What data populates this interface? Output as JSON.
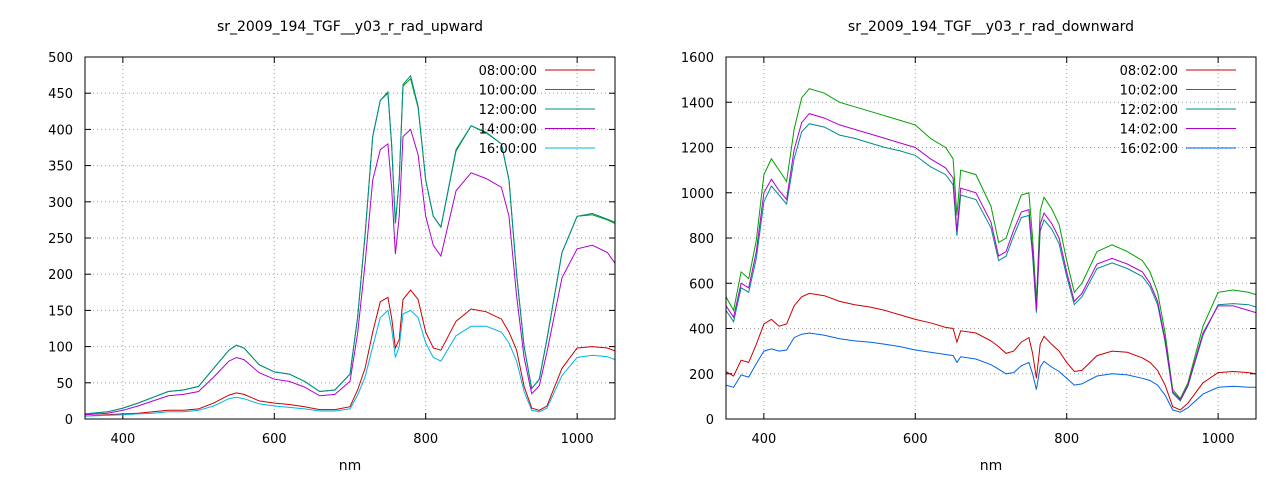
{
  "chart_data": [
    {
      "type": "line",
      "title": "sr_2009_194_TGF__y03_r_rad_upward",
      "xlabel": "nm",
      "ylabel": "",
      "xlim": [
        350,
        1050
      ],
      "ylim": [
        0,
        500
      ],
      "xticks": [
        400,
        600,
        800,
        1000
      ],
      "yticks": [
        0,
        50,
        100,
        150,
        200,
        250,
        300,
        350,
        400,
        450,
        500
      ],
      "grid": true,
      "legend": "top-right",
      "series": [
        {
          "name": "08:00:00",
          "color": "#cc0000",
          "x": [
            350,
            380,
            400,
            420,
            440,
            460,
            480,
            500,
            520,
            540,
            550,
            560,
            580,
            600,
            620,
            640,
            660,
            680,
            700,
            710,
            720,
            730,
            740,
            750,
            755,
            760,
            765,
            770,
            780,
            790,
            800,
            810,
            820,
            840,
            860,
            880,
            900,
            910,
            920,
            930,
            940,
            950,
            960,
            980,
            1000,
            1020,
            1040,
            1050
          ],
          "y": [
            4,
            6,
            7,
            8,
            10,
            12,
            12,
            14,
            22,
            33,
            36,
            34,
            25,
            22,
            20,
            17,
            13,
            13,
            17,
            40,
            70,
            120,
            162,
            168,
            140,
            98,
            110,
            165,
            178,
            165,
            120,
            98,
            95,
            135,
            152,
            148,
            138,
            120,
            95,
            45,
            15,
            12,
            18,
            70,
            98,
            100,
            98,
            94
          ]
        },
        {
          "name": "10:00:00",
          "color": "#00a000",
          "x": [
            350,
            380,
            400,
            420,
            440,
            460,
            480,
            500,
            520,
            540,
            550,
            560,
            580,
            600,
            620,
            640,
            660,
            680,
            700,
            710,
            720,
            730,
            740,
            750,
            755,
            760,
            765,
            770,
            780,
            790,
            800,
            810,
            820,
            840,
            860,
            880,
            900,
            910,
            920,
            930,
            940,
            950,
            960,
            980,
            1000,
            1020,
            1040,
            1050
          ],
          "y": [
            7,
            10,
            15,
            22,
            30,
            38,
            40,
            45,
            70,
            95,
            102,
            98,
            75,
            65,
            62,
            52,
            38,
            40,
            62,
            140,
            255,
            390,
            440,
            450,
            380,
            270,
            330,
            460,
            470,
            430,
            330,
            280,
            265,
            370,
            405,
            395,
            380,
            330,
            200,
            100,
            42,
            55,
            110,
            230,
            280,
            282,
            275,
            270
          ]
        },
        {
          "name": "12:00:00",
          "color": "#008b8b",
          "x": [
            350,
            380,
            400,
            420,
            440,
            460,
            480,
            500,
            520,
            540,
            550,
            560,
            580,
            600,
            620,
            640,
            660,
            680,
            700,
            710,
            720,
            730,
            740,
            750,
            755,
            760,
            765,
            770,
            780,
            790,
            800,
            810,
            820,
            840,
            860,
            880,
            900,
            910,
            920,
            930,
            940,
            950,
            960,
            980,
            1000,
            1020,
            1040,
            1050
          ],
          "y": [
            7,
            10,
            15,
            22,
            30,
            38,
            40,
            45,
            70,
            95,
            102,
            98,
            75,
            65,
            62,
            52,
            38,
            40,
            62,
            140,
            255,
            390,
            440,
            452,
            380,
            270,
            330,
            462,
            474,
            432,
            330,
            280,
            265,
            372,
            405,
            396,
            380,
            330,
            200,
            100,
            42,
            55,
            110,
            230,
            280,
            284,
            276,
            272
          ]
        },
        {
          "name": "14:00:00",
          "color": "#b000d0",
          "x": [
            350,
            380,
            400,
            420,
            440,
            460,
            480,
            500,
            520,
            540,
            550,
            560,
            580,
            600,
            620,
            640,
            660,
            680,
            700,
            710,
            720,
            730,
            740,
            750,
            755,
            760,
            765,
            770,
            780,
            790,
            800,
            810,
            820,
            840,
            860,
            880,
            900,
            910,
            920,
            930,
            940,
            950,
            960,
            980,
            1000,
            1020,
            1040,
            1050
          ],
          "y": [
            6,
            8,
            12,
            18,
            25,
            32,
            34,
            38,
            58,
            80,
            85,
            82,
            64,
            55,
            52,
            44,
            32,
            34,
            52,
            118,
            215,
            330,
            372,
            380,
            320,
            228,
            280,
            390,
            400,
            365,
            280,
            240,
            225,
            315,
            340,
            332,
            320,
            280,
            170,
            85,
            35,
            46,
            92,
            195,
            235,
            240,
            230,
            215
          ]
        },
        {
          "name": "16:00:00",
          "color": "#00b4e6",
          "x": [
            350,
            380,
            400,
            420,
            440,
            460,
            480,
            500,
            520,
            540,
            550,
            560,
            580,
            600,
            620,
            640,
            660,
            680,
            700,
            710,
            720,
            730,
            740,
            750,
            755,
            760,
            765,
            770,
            780,
            790,
            800,
            810,
            820,
            840,
            860,
            880,
            900,
            910,
            920,
            930,
            940,
            950,
            960,
            980,
            1000,
            1020,
            1040,
            1050
          ],
          "y": [
            4,
            5,
            6,
            7,
            8,
            10,
            10,
            12,
            18,
            28,
            30,
            28,
            21,
            18,
            16,
            14,
            11,
            11,
            14,
            33,
            58,
            100,
            140,
            150,
            125,
            85,
            100,
            145,
            150,
            140,
            105,
            85,
            80,
            115,
            128,
            128,
            120,
            105,
            80,
            38,
            12,
            10,
            15,
            60,
            85,
            88,
            86,
            82
          ]
        }
      ]
    },
    {
      "type": "line",
      "title": "sr_2009_194_TGF__y03_r_rad_downward",
      "xlabel": "nm",
      "ylabel": "",
      "xlim": [
        350,
        1050
      ],
      "ylim": [
        0,
        1600
      ],
      "xticks": [
        400,
        600,
        800,
        1000
      ],
      "yticks": [
        0,
        200,
        400,
        600,
        800,
        1000,
        1200,
        1400,
        1600
      ],
      "grid": true,
      "legend": "top-right",
      "series": [
        {
          "name": "08:02:00",
          "color": "#cc0000",
          "x": [
            350,
            360,
            370,
            380,
            390,
            400,
            410,
            420,
            430,
            440,
            450,
            460,
            480,
            500,
            520,
            540,
            560,
            580,
            600,
            620,
            640,
            650,
            655,
            660,
            680,
            700,
            710,
            720,
            730,
            740,
            750,
            755,
            760,
            765,
            770,
            780,
            790,
            800,
            810,
            820,
            840,
            860,
            880,
            900,
            910,
            920,
            930,
            940,
            950,
            960,
            980,
            1000,
            1020,
            1040,
            1050
          ],
          "y": [
            210,
            190,
            260,
            250,
            330,
            420,
            440,
            410,
            420,
            500,
            540,
            555,
            545,
            520,
            505,
            495,
            480,
            460,
            440,
            425,
            405,
            400,
            340,
            390,
            380,
            345,
            320,
            290,
            300,
            340,
            360,
            290,
            180,
            330,
            365,
            330,
            300,
            250,
            210,
            215,
            280,
            300,
            295,
            270,
            250,
            215,
            150,
            55,
            40,
            70,
            160,
            205,
            210,
            205,
            200
          ]
        },
        {
          "name": "10:02:00",
          "color": "#00a000",
          "x": [
            350,
            360,
            370,
            380,
            390,
            400,
            410,
            420,
            430,
            440,
            450,
            460,
            480,
            500,
            520,
            540,
            560,
            580,
            600,
            620,
            640,
            650,
            655,
            660,
            680,
            700,
            710,
            720,
            730,
            740,
            750,
            755,
            760,
            765,
            770,
            780,
            790,
            800,
            810,
            820,
            840,
            860,
            880,
            900,
            910,
            920,
            930,
            940,
            950,
            960,
            980,
            1000,
            1020,
            1040,
            1050
          ],
          "y": [
            540,
            480,
            650,
            620,
            790,
            1080,
            1150,
            1100,
            1050,
            1280,
            1420,
            1460,
            1440,
            1400,
            1380,
            1360,
            1340,
            1320,
            1300,
            1240,
            1200,
            1150,
            900,
            1100,
            1080,
            940,
            780,
            800,
            900,
            990,
            1000,
            800,
            520,
            920,
            980,
            930,
            860,
            700,
            560,
            600,
            740,
            770,
            740,
            700,
            650,
            560,
            380,
            130,
            90,
            160,
            410,
            560,
            570,
            560,
            550
          ]
        },
        {
          "name": "12:02:00",
          "color": "#008b8b",
          "x": [
            350,
            360,
            370,
            380,
            390,
            400,
            410,
            420,
            430,
            440,
            450,
            460,
            480,
            500,
            520,
            540,
            560,
            580,
            600,
            620,
            640,
            650,
            655,
            660,
            680,
            700,
            710,
            720,
            730,
            740,
            750,
            755,
            760,
            765,
            770,
            780,
            790,
            800,
            810,
            820,
            840,
            860,
            880,
            900,
            910,
            920,
            930,
            940,
            950,
            960,
            980,
            1000,
            1020,
            1040,
            1050
          ],
          "y": [
            480,
            430,
            580,
            560,
            710,
            960,
            1030,
            990,
            950,
            1150,
            1270,
            1305,
            1290,
            1255,
            1240,
            1220,
            1200,
            1185,
            1165,
            1115,
            1080,
            1035,
            810,
            990,
            970,
            845,
            700,
            720,
            810,
            890,
            900,
            720,
            470,
            830,
            880,
            840,
            775,
            630,
            505,
            540,
            665,
            690,
            665,
            630,
            585,
            505,
            340,
            115,
            80,
            145,
            370,
            505,
            510,
            505,
            495
          ]
        },
        {
          "name": "14:02:00",
          "color": "#b000d0",
          "x": [
            350,
            360,
            370,
            380,
            390,
            400,
            410,
            420,
            430,
            440,
            450,
            460,
            480,
            500,
            520,
            540,
            560,
            580,
            600,
            620,
            640,
            650,
            655,
            660,
            680,
            700,
            710,
            720,
            730,
            740,
            750,
            755,
            760,
            765,
            770,
            780,
            790,
            800,
            810,
            820,
            840,
            860,
            880,
            900,
            910,
            920,
            930,
            940,
            950,
            960,
            980,
            1000,
            1020,
            1040,
            1050
          ],
          "y": [
            500,
            450,
            600,
            580,
            740,
            1000,
            1060,
            1010,
            970,
            1190,
            1310,
            1350,
            1330,
            1300,
            1280,
            1260,
            1240,
            1220,
            1200,
            1150,
            1110,
            1065,
            830,
            1020,
            1000,
            870,
            720,
            740,
            835,
            915,
            925,
            740,
            480,
            860,
            910,
            865,
            800,
            650,
            520,
            555,
            685,
            710,
            685,
            650,
            600,
            520,
            350,
            120,
            85,
            150,
            380,
            500,
            500,
            480,
            470
          ]
        },
        {
          "name": "16:02:00",
          "color": "#0064e6",
          "x": [
            350,
            360,
            370,
            380,
            390,
            400,
            410,
            420,
            430,
            440,
            450,
            460,
            480,
            500,
            520,
            540,
            560,
            580,
            600,
            620,
            640,
            650,
            655,
            660,
            680,
            700,
            710,
            720,
            730,
            740,
            750,
            755,
            760,
            765,
            770,
            780,
            790,
            800,
            810,
            820,
            840,
            860,
            880,
            900,
            910,
            920,
            930,
            940,
            950,
            960,
            980,
            1000,
            1020,
            1040,
            1050
          ],
          "y": [
            150,
            140,
            195,
            185,
            245,
            300,
            310,
            300,
            305,
            360,
            375,
            380,
            370,
            355,
            345,
            340,
            330,
            320,
            305,
            295,
            285,
            280,
            250,
            275,
            265,
            240,
            220,
            200,
            205,
            235,
            250,
            200,
            130,
            230,
            255,
            230,
            210,
            180,
            150,
            155,
            190,
            200,
            195,
            180,
            170,
            150,
            105,
            40,
            30,
            50,
            110,
            140,
            145,
            140,
            140
          ]
        }
      ]
    }
  ]
}
